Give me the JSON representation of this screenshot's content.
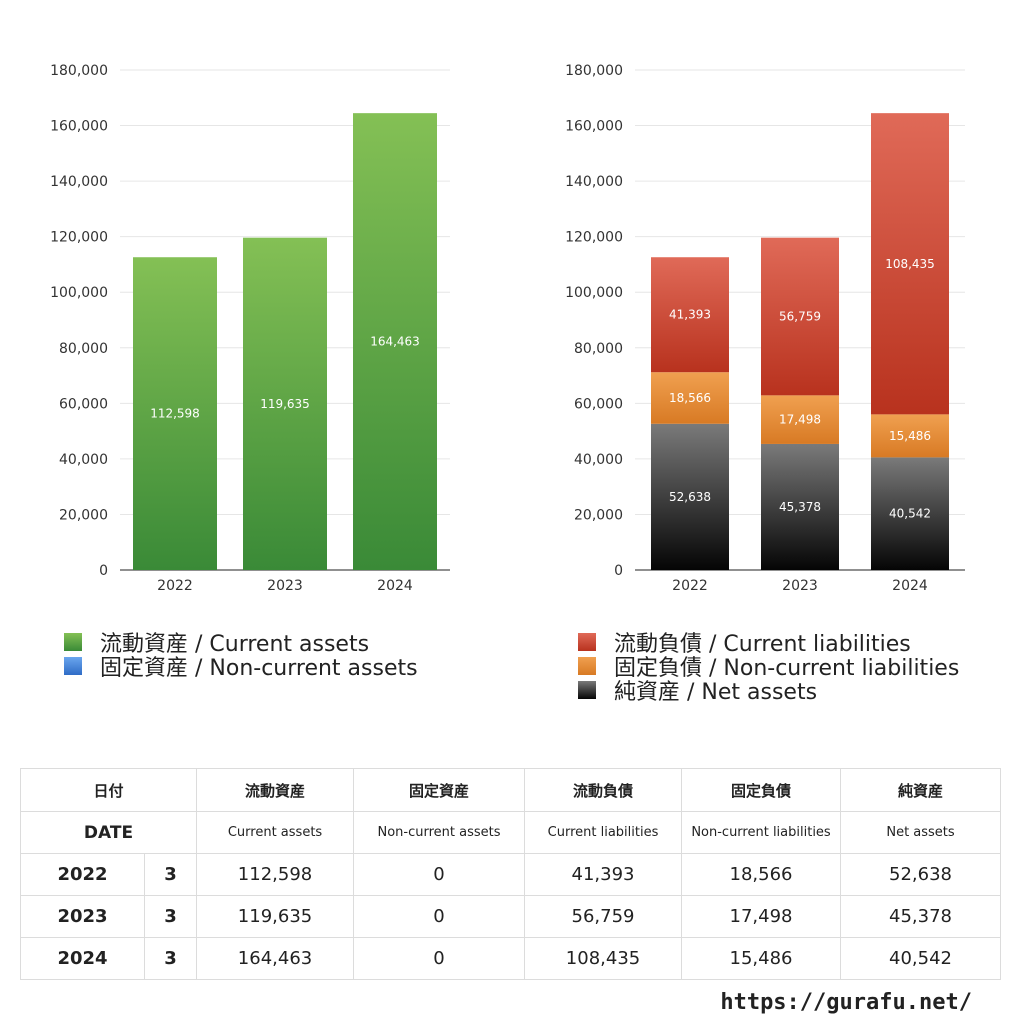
{
  "colors": {
    "current_assets": "#4a9a3e",
    "non_current_assets": "#3f7fd6",
    "current_liabilities": "#d14a35",
    "non_current_liabilities": "#e38a35",
    "net_assets": "#333333",
    "grid": "#e6e6e6"
  },
  "chart_data": [
    {
      "type": "bar",
      "categories": [
        "2022",
        "2023",
        "2024"
      ],
      "series": [
        {
          "name": "流動資産 / Current assets",
          "values": [
            112598,
            119635,
            164463
          ]
        },
        {
          "name": "固定資産 / Non-current assets",
          "values": [
            0,
            0,
            0
          ]
        }
      ],
      "value_labels": [
        "112,598",
        "119,635",
        "164,463"
      ],
      "ylim": [
        0,
        180000
      ],
      "yticks": [
        "0",
        "20,000",
        "40,000",
        "60,000",
        "80,000",
        "100,000",
        "120,000",
        "140,000",
        "160,000",
        "180,000"
      ],
      "grid": true,
      "legend_position": "bottom"
    },
    {
      "type": "bar",
      "stacked": true,
      "categories": [
        "2022",
        "2023",
        "2024"
      ],
      "series": [
        {
          "name": "純資産 / Net assets",
          "values": [
            52638,
            45378,
            40542
          ],
          "labels": [
            "52,638",
            "45,378",
            "40,542"
          ]
        },
        {
          "name": "固定負債 / Non-current liabilities",
          "values": [
            18566,
            17498,
            15486
          ],
          "labels": [
            "18,566",
            "17,498",
            "15,486"
          ]
        },
        {
          "name": "流動負債 / Current liabilities",
          "values": [
            41393,
            56759,
            108435
          ],
          "labels": [
            "41,393",
            "56,759",
            "108,435"
          ]
        }
      ],
      "ylim": [
        0,
        180000
      ],
      "yticks": [
        "0",
        "20,000",
        "40,000",
        "60,000",
        "80,000",
        "100,000",
        "120,000",
        "140,000",
        "160,000",
        "180,000"
      ],
      "grid": true,
      "legend_position": "bottom"
    }
  ],
  "legends": {
    "left": [
      "流動資産 / Current assets",
      "固定資産 / Non-current assets"
    ],
    "right": [
      "流動負債 / Current liabilities",
      "固定負債 / Non-current liabilities",
      "純資産 / Net assets"
    ]
  },
  "table": {
    "header_jp": [
      "日付",
      "流動資産",
      "固定資産",
      "流動負債",
      "固定負債",
      "純資産"
    ],
    "header_en": [
      "DATE",
      "Current assets",
      "Non-current assets",
      "Current liabilities",
      "Non-current liabilities",
      "Net assets"
    ],
    "rows": [
      {
        "year": "2022",
        "month": "3",
        "values": [
          "112,598",
          "0",
          "41,393",
          "18,566",
          "52,638"
        ]
      },
      {
        "year": "2023",
        "month": "3",
        "values": [
          "119,635",
          "0",
          "56,759",
          "17,498",
          "45,378"
        ]
      },
      {
        "year": "2024",
        "month": "3",
        "values": [
          "164,463",
          "0",
          "108,435",
          "15,486",
          "40,542"
        ]
      }
    ]
  },
  "footer": {
    "url": "https://gurafu.net/"
  }
}
